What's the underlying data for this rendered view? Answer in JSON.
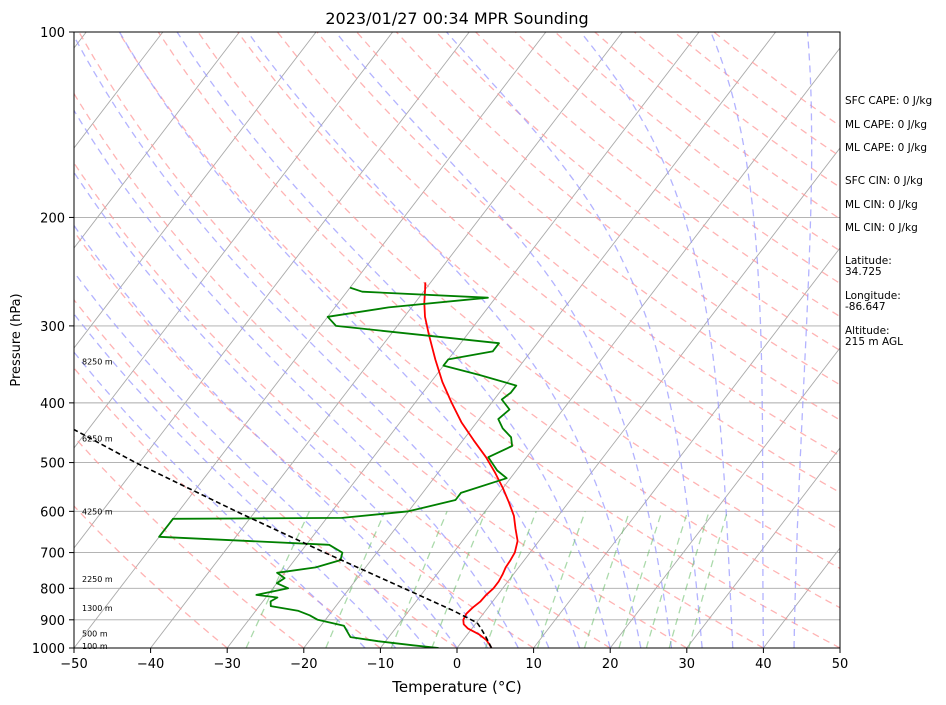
{
  "chart_data": {
    "type": "line",
    "title": "2023/01/27 00:34 MPR Sounding",
    "xlabel": "Temperature (°C)",
    "ylabel": "Pressure (hPa)",
    "xlim": [
      -50,
      50
    ],
    "ylim": [
      1000,
      100
    ],
    "y_scale": "log",
    "grid": true,
    "x_ticks": [
      "−50",
      "−40",
      "−30",
      "−20",
      "−10",
      "0",
      "10",
      "20",
      "30",
      "40",
      "50"
    ],
    "y_ticks": [
      {
        "p": 100,
        "label": "100"
      },
      {
        "p": 200,
        "label": "200"
      },
      {
        "p": 300,
        "label": "300"
      },
      {
        "p": 400,
        "label": "400"
      },
      {
        "p": 500,
        "label": "500"
      },
      {
        "p": 600,
        "label": "600"
      },
      {
        "p": 700,
        "label": "700"
      },
      {
        "p": 800,
        "label": "800"
      },
      {
        "p": 900,
        "label": "900"
      },
      {
        "p": 1000,
        "label": "1000"
      }
    ],
    "height_labels": [
      {
        "p": 1000,
        "label": "100 m"
      },
      {
        "p": 955,
        "label": "500 m"
      },
      {
        "p": 868,
        "label": "1300 m"
      },
      {
        "p": 778,
        "label": "2250 m"
      },
      {
        "p": 605,
        "label": "4250 m"
      },
      {
        "p": 460,
        "label": "6250 m"
      },
      {
        "p": 345,
        "label": "8250 m"
      }
    ],
    "series": [
      {
        "color": "#ff0000",
        "points": [
          [
            1000,
            4.5
          ],
          [
            985,
            3.8
          ],
          [
            970,
            3.0
          ],
          [
            950,
            1.5
          ],
          [
            930,
            -0.5
          ],
          [
            915,
            -1.5
          ],
          [
            900,
            -2.0
          ],
          [
            880,
            -2.2
          ],
          [
            860,
            -2.0
          ],
          [
            840,
            -1.6
          ],
          [
            820,
            -1.5
          ],
          [
            800,
            -1.2
          ],
          [
            780,
            -1.2
          ],
          [
            760,
            -1.4
          ],
          [
            740,
            -1.7
          ],
          [
            720,
            -1.8
          ],
          [
            700,
            -2.0
          ],
          [
            670,
            -2.8
          ],
          [
            640,
            -4.3
          ],
          [
            610,
            -5.8
          ],
          [
            580,
            -7.8
          ],
          [
            550,
            -10.0
          ],
          [
            520,
            -12.5
          ],
          [
            490,
            -15.3
          ],
          [
            460,
            -18.6
          ],
          [
            430,
            -22.0
          ],
          [
            400,
            -25.2
          ],
          [
            370,
            -28.5
          ],
          [
            340,
            -31.7
          ],
          [
            310,
            -35.0
          ],
          [
            290,
            -37.3
          ],
          [
            275,
            -38.8
          ],
          [
            262,
            -40.0
          ],
          [
            255,
            -40.7
          ]
        ]
      },
      {
        "color": "#008000",
        "points": [
          [
            1000,
            -2.4
          ],
          [
            990,
            -6.0
          ],
          [
            975,
            -11.0
          ],
          [
            960,
            -15.0
          ],
          [
            950,
            -15.5
          ],
          [
            920,
            -17.0
          ],
          [
            900,
            -21.0
          ],
          [
            885,
            -22.5
          ],
          [
            870,
            -24.5
          ],
          [
            855,
            -28.5
          ],
          [
            840,
            -29.0
          ],
          [
            828,
            -28.5
          ],
          [
            820,
            -31.5
          ],
          [
            800,
            -28.0
          ],
          [
            785,
            -30.0
          ],
          [
            770,
            -29.5
          ],
          [
            755,
            -31.0
          ],
          [
            740,
            -26.5
          ],
          [
            720,
            -24.0
          ],
          [
            700,
            -24.5
          ],
          [
            680,
            -27.0
          ],
          [
            660,
            -50.0
          ],
          [
            630,
            -50.0
          ],
          [
            617,
            -50.0
          ],
          [
            615,
            -28.0
          ],
          [
            600,
            -20.0
          ],
          [
            575,
            -15.0
          ],
          [
            560,
            -15.0
          ],
          [
            530,
            -10.5
          ],
          [
            515,
            -12.5
          ],
          [
            490,
            -15.0
          ],
          [
            470,
            -13.0
          ],
          [
            455,
            -14.0
          ],
          [
            440,
            -16.0
          ],
          [
            425,
            -17.5
          ],
          [
            410,
            -17.0
          ],
          [
            395,
            -19.0
          ],
          [
            385,
            -18.5
          ],
          [
            375,
            -18.5
          ],
          [
            360,
            -24.5
          ],
          [
            348,
            -30.0
          ],
          [
            340,
            -30.0
          ],
          [
            330,
            -25.0
          ],
          [
            320,
            -25.0
          ],
          [
            300,
            -48.0
          ],
          [
            290,
            -50.0
          ],
          [
            280,
            -43.0
          ],
          [
            270,
            -31.0
          ],
          [
            264,
            -48.0
          ],
          [
            260,
            -50.0
          ]
        ]
      },
      {
        "color": "#000000",
        "dashed": true,
        "points": [
          [
            1000,
            4.5
          ],
          [
            960,
            2.7
          ],
          [
            930,
            1.2
          ],
          [
            910,
            0.1
          ],
          [
            870,
            -4.2
          ],
          [
            800,
            -12.9
          ],
          [
            700,
            -26.8
          ],
          [
            600,
            -42.5
          ],
          [
            500,
            -60.5
          ],
          [
            400,
            -81.0
          ],
          [
            300,
            -106.0
          ]
        ]
      }
    ],
    "reference_lines": {
      "isotherm_color": "#aaaaaa",
      "dry_adiabat_color": "#ff9999",
      "moist_adiabat_color": "#9999ff",
      "mixing_ratio_color": "#66bb66"
    }
  },
  "side_panel": [
    {
      "text": "SFC CAPE: 0 J/kg"
    },
    {
      "text": "ML CAPE: 0 J/kg"
    },
    {
      "text": "ML CAPE: 0 J/kg"
    },
    {
      "text": "SFC CIN: 0 J/kg"
    },
    {
      "text": "ML CIN: 0 J/kg"
    },
    {
      "text": "ML CIN: 0 J/kg"
    },
    {
      "text": "Latitude:"
    },
    {
      "text": "34.725"
    },
    {
      "text": "Longitude:"
    },
    {
      "text": "-86.647"
    },
    {
      "text": "Altitude:"
    },
    {
      "text": "215 m AGL"
    }
  ]
}
